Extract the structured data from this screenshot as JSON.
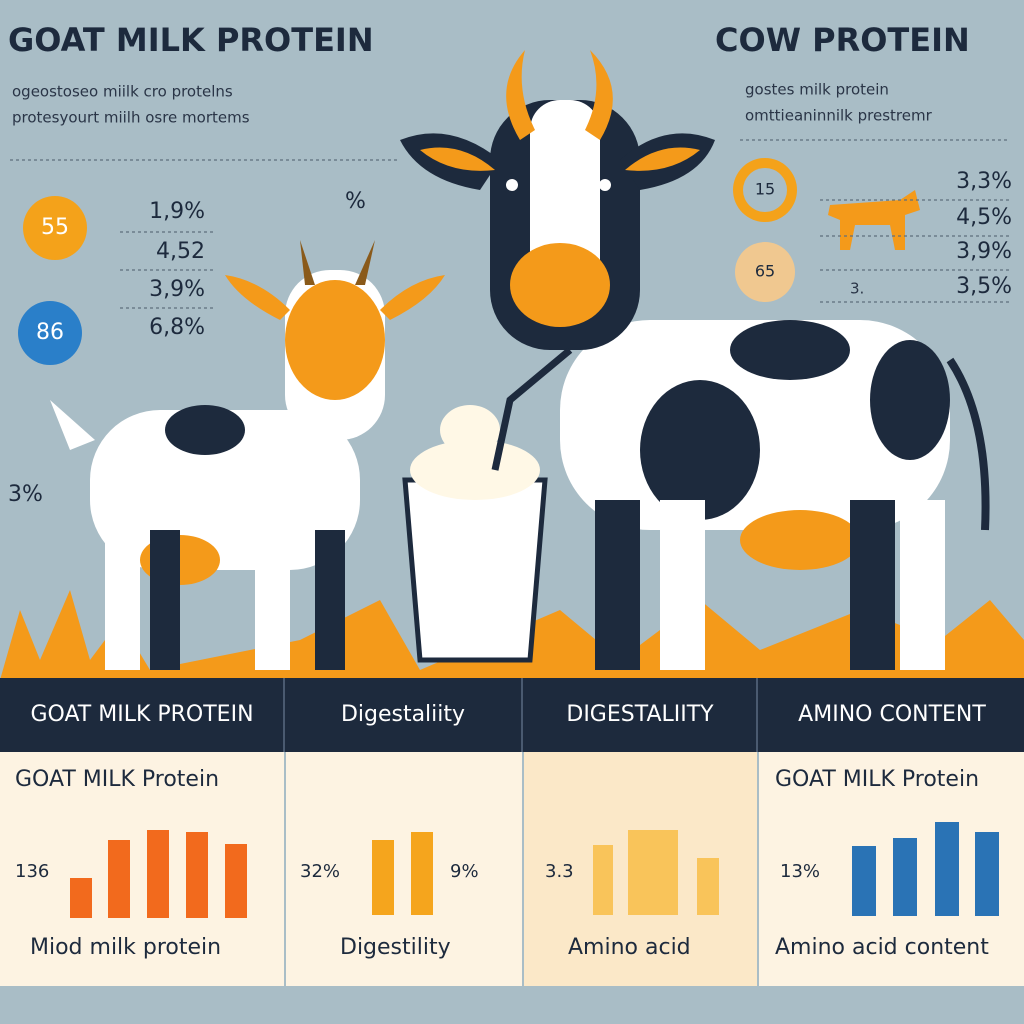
{
  "left": {
    "title": "GOAT MILK PROTEIN",
    "subtitle": [
      "ogeostoseo miilk cro protelns",
      "protesyourt miilh osre mortems"
    ],
    "badges": [
      "55",
      "86"
    ],
    "stats": [
      "1,9%",
      "4,52",
      "3,9%",
      "6,8%"
    ],
    "note": "%",
    "side": "3%"
  },
  "right": {
    "title": "COW  PROTEIN",
    "subtitle": [
      "gostes milk protein",
      "omttieaninnilk prestremr"
    ],
    "badges": [
      "15",
      "65"
    ],
    "stats": [
      "3,3%",
      "4,5%",
      "3,9%",
      "3,5%"
    ],
    "extra": "3."
  },
  "table": {
    "headers": [
      "GOAT MILK PROTEIN",
      "Digestaliity",
      "DIGESTALIITY",
      "AMINO  CONTENT"
    ],
    "panels": [
      {
        "title": "GOAT MILK Protein",
        "value": "136",
        "caption": "Miod milk protein"
      },
      {
        "value": "32%",
        "value2": "9%",
        "caption": "Digestility"
      },
      {
        "value": "3.3",
        "caption": "Amino acid"
      },
      {
        "title": "GOAT MILK Protein",
        "value": "13%",
        "caption": "Amino acid content"
      }
    ]
  }
}
